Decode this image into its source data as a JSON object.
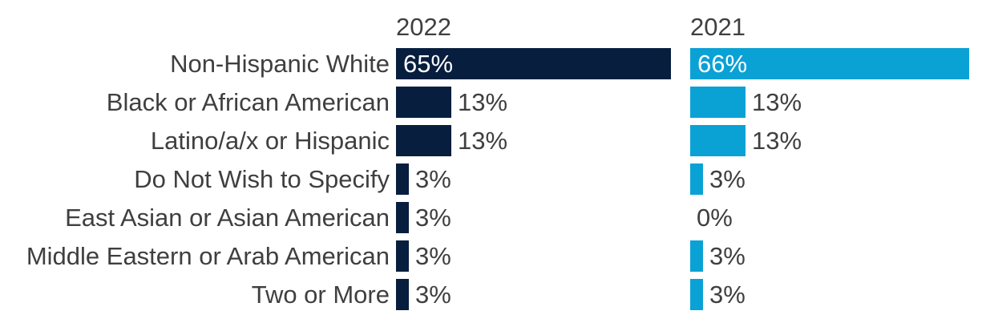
{
  "chart_data": {
    "type": "bar",
    "orientation": "horizontal",
    "title": "",
    "categories": [
      "Non-Hispanic White",
      "Black or African American",
      "Latino/a/x or Hispanic",
      "Do Not Wish to Specify",
      "East Asian or Asian American",
      "Middle Eastern or Arab American",
      "Two or More"
    ],
    "series": [
      {
        "name": "2022",
        "color": "#071E3E",
        "values": [
          65,
          13,
          13,
          3,
          3,
          3,
          3
        ],
        "labels": [
          "65%",
          "13%",
          "13%",
          "3%",
          "3%",
          "3%",
          "3%"
        ]
      },
      {
        "name": "2021",
        "color": "#0AA1D5",
        "values": [
          66,
          13,
          13,
          3,
          0,
          3,
          3
        ],
        "labels": [
          "66%",
          "13%",
          "13%",
          "3%",
          "0%",
          "3%",
          "3%"
        ]
      }
    ],
    "value_unit": "%",
    "xlim": [
      0,
      70
    ],
    "grid": false,
    "legend_position": "column-headers",
    "value_label_inside_threshold": 20,
    "colors": {
      "text": "#3F3F3F",
      "inside_label": "#FFFFFF",
      "background": "#FFFFFF"
    }
  }
}
